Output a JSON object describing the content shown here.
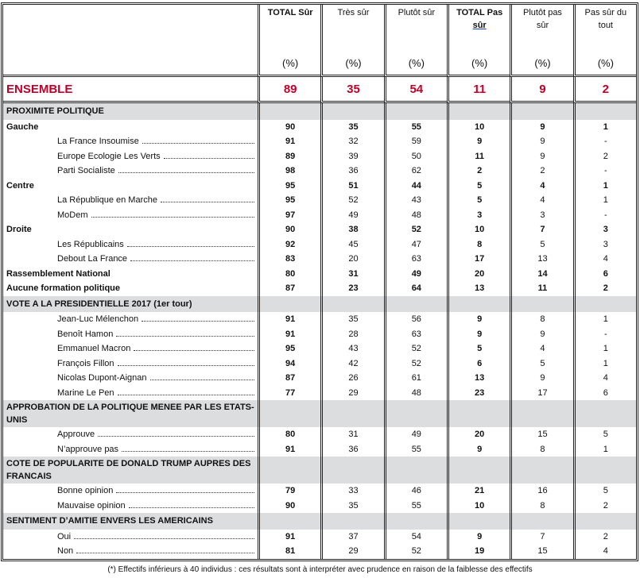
{
  "headers": [
    {
      "label": "TOTAL Sûr",
      "bold": true,
      "unit": "(%)"
    },
    {
      "label": "Très sûr",
      "bold": false,
      "unit": "(%)"
    },
    {
      "label": "Plutôt sûr",
      "bold": false,
      "unit": "(%)"
    },
    {
      "label": "TOTAL Pas",
      "label2": "sûr",
      "bold": true,
      "unit": "(%)"
    },
    {
      "label": "Plutôt pas",
      "label2": "sûr",
      "bold": false,
      "unit": "(%)"
    },
    {
      "label": "Pas sûr du",
      "label2": "tout",
      "bold": false,
      "unit": "(%)"
    }
  ],
  "colors": {
    "ensemble": "#c0002a",
    "section_bg": "#dcdddf"
  },
  "ensemble": {
    "label": "ENSEMBLE",
    "values": [
      "89",
      "35",
      "54",
      "11",
      "9",
      "2"
    ]
  },
  "rows": [
    {
      "type": "sec",
      "label": "PROXIMITE POLITIQUE"
    },
    {
      "type": "group",
      "label": "Gauche",
      "values": [
        "90",
        "35",
        "55",
        "10",
        "9",
        "1"
      ]
    },
    {
      "type": "sub",
      "label": "La France Insoumise",
      "values": [
        "91",
        "32",
        "59",
        "9",
        "9",
        "-"
      ]
    },
    {
      "type": "sub",
      "label": "Europe Ecologie Les Verts",
      "values": [
        "89",
        "39",
        "50",
        "11",
        "9",
        "2"
      ]
    },
    {
      "type": "sub",
      "label": "Parti Socialiste",
      "values": [
        "98",
        "36",
        "62",
        "2",
        "2",
        "-"
      ]
    },
    {
      "type": "group",
      "label": "Centre",
      "values": [
        "95",
        "51",
        "44",
        "5",
        "4",
        "1"
      ]
    },
    {
      "type": "sub",
      "label": "La République en Marche",
      "values": [
        "95",
        "52",
        "43",
        "5",
        "4",
        "1"
      ]
    },
    {
      "type": "sub",
      "label": "MoDem",
      "values": [
        "97",
        "49",
        "48",
        "3",
        "3",
        "-"
      ]
    },
    {
      "type": "group",
      "label": "Droite",
      "values": [
        "90",
        "38",
        "52",
        "10",
        "7",
        "3"
      ]
    },
    {
      "type": "sub",
      "label": "Les Républicains",
      "values": [
        "92",
        "45",
        "47",
        "8",
        "5",
        "3"
      ]
    },
    {
      "type": "sub",
      "label": "Debout La France",
      "values": [
        "83",
        "20",
        "63",
        "17",
        "13",
        "4"
      ]
    },
    {
      "type": "group",
      "label": "Rassemblement National",
      "values": [
        "80",
        "31",
        "49",
        "20",
        "14",
        "6"
      ]
    },
    {
      "type": "group",
      "label": "Aucune formation politique",
      "values": [
        "87",
        "23",
        "64",
        "13",
        "11",
        "2"
      ]
    },
    {
      "type": "sec",
      "label": "VOTE A LA PRESIDENTIELLE 2017 (1er tour)"
    },
    {
      "type": "sub",
      "label": "Jean-Luc Mélenchon",
      "values": [
        "91",
        "35",
        "56",
        "9",
        "8",
        "1"
      ]
    },
    {
      "type": "sub",
      "label": "Benoît Hamon",
      "values": [
        "91",
        "28",
        "63",
        "9",
        "9",
        "-"
      ]
    },
    {
      "type": "sub",
      "label": "Emmanuel Macron",
      "values": [
        "95",
        "43",
        "52",
        "5",
        "4",
        "1"
      ]
    },
    {
      "type": "sub",
      "label": "François Fillon",
      "values": [
        "94",
        "42",
        "52",
        "6",
        "5",
        "1"
      ]
    },
    {
      "type": "sub",
      "label": "Nicolas Dupont-Aignan",
      "values": [
        "87",
        "26",
        "61",
        "13",
        "9",
        "4"
      ]
    },
    {
      "type": "sub",
      "label": "Marine Le Pen",
      "values": [
        "77",
        "29",
        "48",
        "23",
        "17",
        "6"
      ]
    },
    {
      "type": "sec",
      "label": "APPROBATION DE LA POLITIQUE MENEE PAR LES ETATS-UNIS"
    },
    {
      "type": "sub",
      "label": "Approuve",
      "values": [
        "80",
        "31",
        "49",
        "20",
        "15",
        "5"
      ]
    },
    {
      "type": "sub",
      "label": "N’approuve pas",
      "values": [
        "91",
        "36",
        "55",
        "9",
        "8",
        "1"
      ]
    },
    {
      "type": "sec",
      "label": "COTE DE POPULARITE DE DONALD TRUMP AUPRES DES FRANCAIS"
    },
    {
      "type": "sub",
      "label": "Bonne opinion",
      "values": [
        "79",
        "33",
        "46",
        "21",
        "16",
        "5"
      ]
    },
    {
      "type": "sub",
      "label": "Mauvaise opinion",
      "values": [
        "90",
        "35",
        "55",
        "10",
        "8",
        "2"
      ]
    },
    {
      "type": "sec",
      "label": "SENTIMENT D’AMITIE ENVERS LES AMERICAINS"
    },
    {
      "type": "sub",
      "label": "Oui",
      "values": [
        "91",
        "37",
        "54",
        "9",
        "7",
        "2"
      ]
    },
    {
      "type": "sub",
      "label": "Non",
      "values": [
        "81",
        "29",
        "52",
        "19",
        "15",
        "4"
      ]
    }
  ],
  "footnote": "(*) Effectifs inférieurs à 40 individus : ces résultats sont à interpréter avec prudence en raison de la faiblesse des effectifs"
}
